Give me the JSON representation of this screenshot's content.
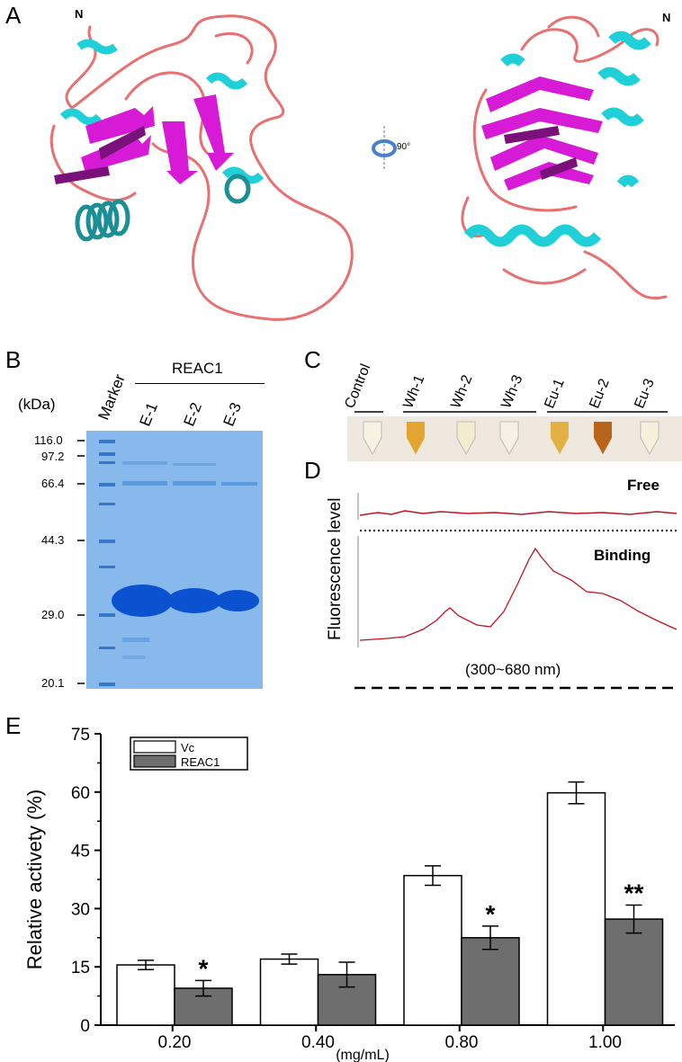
{
  "panels": {
    "a": "A",
    "b": "B",
    "c": "C",
    "d": "D",
    "e": "E"
  },
  "panel_a": {
    "n_left": "N",
    "n_right": "N",
    "rotation": "90°"
  },
  "panel_b": {
    "kda_label": "(kDa)",
    "marker_label": "Marker",
    "group_label": "REAC1",
    "lanes": [
      "E-1",
      "E-2",
      "E-3"
    ],
    "mw": [
      "116.0",
      "97.2",
      "66.4",
      "44.3",
      "29.0",
      "20.1"
    ]
  },
  "panel_c": {
    "tubes": [
      "Control",
      "Wh-1",
      "Wh-2",
      "Wh-3",
      "Eu-1",
      "Eu-2",
      "Eu-3"
    ]
  },
  "panel_d": {
    "ylabel": "Fluorescence level",
    "free_label": "Free",
    "binding_label": "Binding",
    "range_label": "(300~680 nm)"
  },
  "chart_data": {
    "type": "bar",
    "categories": [
      "0.20",
      "0.40",
      "0.80",
      "1.00"
    ],
    "xlabel": "(mg/mL)",
    "ylabel": "Relative activety (%)",
    "ylim": [
      0,
      75
    ],
    "yticks": [
      "0",
      "15",
      "30",
      "45",
      "60",
      "75"
    ],
    "legend_position": "top-left",
    "series": [
      {
        "name": "Vc",
        "color": "#ffffff",
        "values": [
          15.5,
          17,
          38.5,
          59.8
        ],
        "errors": [
          1.2,
          1.3,
          2.5,
          2.8
        ]
      },
      {
        "name": "REAC1",
        "color": "#6e6e6e",
        "values": [
          9.5,
          13,
          22.5,
          27.3
        ],
        "errors": [
          2.0,
          3.2,
          3.0,
          3.6
        ]
      }
    ],
    "significance": [
      "*",
      "",
      "*",
      "**"
    ]
  }
}
